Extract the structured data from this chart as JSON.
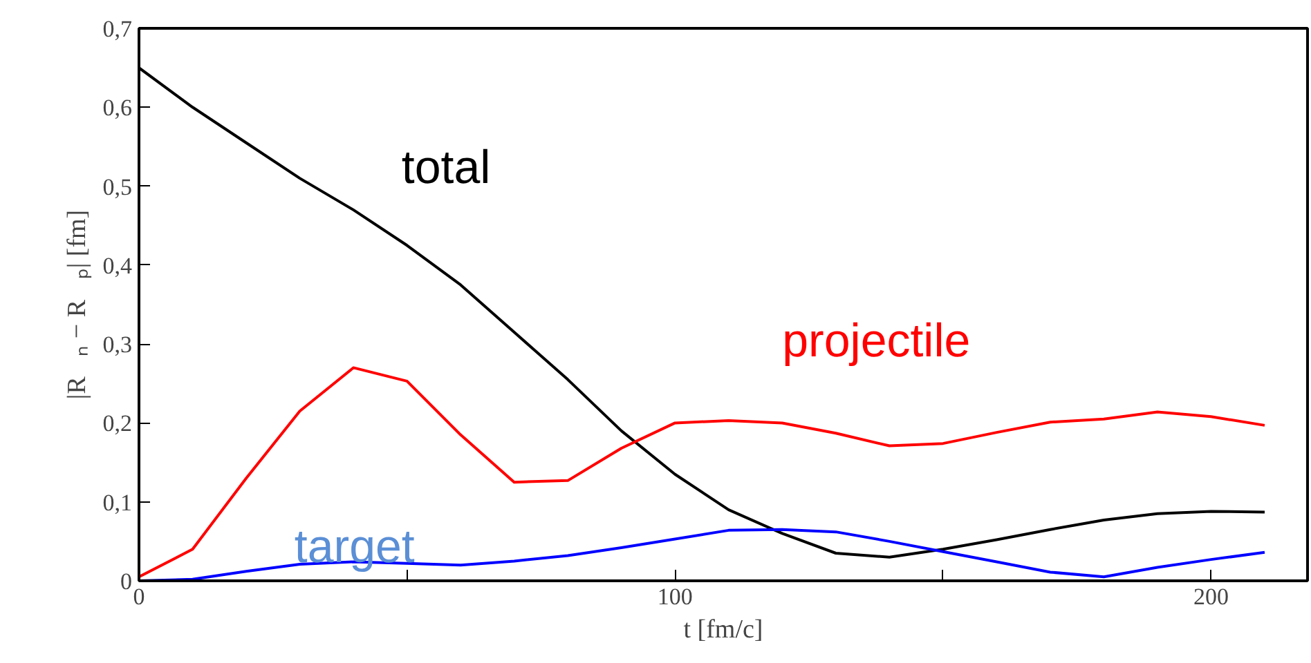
{
  "chart_data": {
    "type": "line",
    "xlabel": "t [fm/c]",
    "ylabel": "|R⃗ₙ − R⃗ₚ| [fm]",
    "x": [
      0,
      10,
      20,
      30,
      40,
      50,
      60,
      70,
      80,
      90,
      100,
      110,
      120,
      130,
      140,
      150,
      160,
      170,
      180,
      190,
      200,
      210
    ],
    "series": [
      {
        "name": "total",
        "color": "#000000",
        "values": [
          0.65,
          0.6,
          0.555,
          0.51,
          0.47,
          0.425,
          0.375,
          0.315,
          0.255,
          0.19,
          0.135,
          0.09,
          0.06,
          0.035,
          0.03,
          0.04,
          0.052,
          0.065,
          0.077,
          0.085,
          0.088,
          0.087
        ]
      },
      {
        "name": "projectile",
        "color": "#ff0000",
        "values": [
          0.005,
          0.04,
          0.13,
          0.215,
          0.27,
          0.253,
          0.185,
          0.125,
          0.127,
          0.168,
          0.2,
          0.203,
          0.2,
          0.187,
          0.171,
          0.174,
          0.188,
          0.201,
          0.205,
          0.214,
          0.208,
          0.197
        ]
      },
      {
        "name": "target",
        "color": "#0000ff",
        "values": [
          0,
          0.002,
          0.012,
          0.021,
          0.024,
          0.022,
          0.02,
          0.025,
          0.032,
          0.042,
          0.053,
          0.064,
          0.065,
          0.062,
          0.05,
          0.037,
          0.024,
          0.011,
          0.005,
          0.017,
          0.027,
          0.036
        ]
      }
    ],
    "xlim": [
      0,
      218
    ],
    "ylim": [
      0,
      0.7
    ],
    "xticks": [
      0,
      {
        "value": 50,
        "label": null
      },
      100,
      {
        "value": 150,
        "label": null
      },
      200
    ],
    "yticks": [
      {
        "value": 0,
        "label": "0"
      },
      {
        "value": 0.1,
        "label": "0,1"
      },
      {
        "value": 0.2,
        "label": "0,2"
      },
      {
        "value": 0.3,
        "label": "0,3"
      },
      {
        "value": 0.4,
        "label": "0,4"
      },
      {
        "value": 0.5,
        "label": "0,5"
      },
      {
        "value": 0.6,
        "label": "0,6"
      },
      {
        "value": 0.7,
        "label": "0,7"
      }
    ],
    "grid": false,
    "marker": "none",
    "line_style": "solid"
  }
}
